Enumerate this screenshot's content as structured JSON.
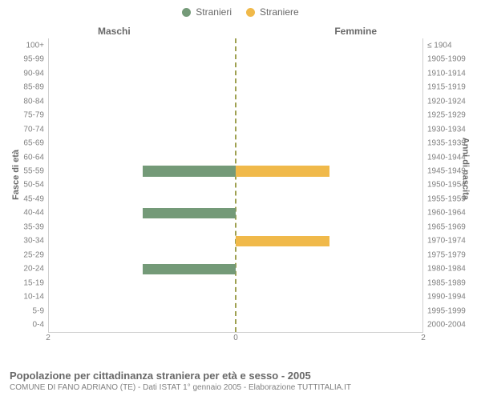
{
  "legend": {
    "items": [
      {
        "label": "Stranieri",
        "color": "#749a78"
      },
      {
        "label": "Straniere",
        "color": "#f0b94a"
      }
    ]
  },
  "headers": {
    "left": "Maschi",
    "right": "Femmine"
  },
  "axis_titles": {
    "left": "Fasce di età",
    "right": "Anni di nascita"
  },
  "chart": {
    "type": "bar",
    "xmax": 2,
    "xticks": [
      2,
      0,
      2
    ],
    "bar_left_color": "#749a78",
    "bar_right_color": "#f0b94a",
    "centerline_color": "#9ea050",
    "border_color": "#d0d0d0",
    "label_color": "#808080",
    "background_color": "#ffffff",
    "label_fontsize": 10,
    "header_fontsize": 12,
    "rows": [
      {
        "left_label": "100+",
        "right_label": "≤ 1904",
        "m": 0,
        "f": 0
      },
      {
        "left_label": "95-99",
        "right_label": "1905-1909",
        "m": 0,
        "f": 0
      },
      {
        "left_label": "90-94",
        "right_label": "1910-1914",
        "m": 0,
        "f": 0
      },
      {
        "left_label": "85-89",
        "right_label": "1915-1919",
        "m": 0,
        "f": 0
      },
      {
        "left_label": "80-84",
        "right_label": "1920-1924",
        "m": 0,
        "f": 0
      },
      {
        "left_label": "75-79",
        "right_label": "1925-1929",
        "m": 0,
        "f": 0
      },
      {
        "left_label": "70-74",
        "right_label": "1930-1934",
        "m": 0,
        "f": 0
      },
      {
        "left_label": "65-69",
        "right_label": "1935-1939",
        "m": 0,
        "f": 0
      },
      {
        "left_label": "60-64",
        "right_label": "1940-1944",
        "m": 0,
        "f": 0
      },
      {
        "left_label": "55-59",
        "right_label": "1945-1949",
        "m": 1,
        "f": 1
      },
      {
        "left_label": "50-54",
        "right_label": "1950-1954",
        "m": 0,
        "f": 0
      },
      {
        "left_label": "45-49",
        "right_label": "1955-1959",
        "m": 0,
        "f": 0
      },
      {
        "left_label": "40-44",
        "right_label": "1960-1964",
        "m": 1,
        "f": 0
      },
      {
        "left_label": "35-39",
        "right_label": "1965-1969",
        "m": 0,
        "f": 0
      },
      {
        "left_label": "30-34",
        "right_label": "1970-1974",
        "m": 0,
        "f": 1
      },
      {
        "left_label": "25-29",
        "right_label": "1975-1979",
        "m": 0,
        "f": 0
      },
      {
        "left_label": "20-24",
        "right_label": "1980-1984",
        "m": 1,
        "f": 0
      },
      {
        "left_label": "15-19",
        "right_label": "1985-1989",
        "m": 0,
        "f": 0
      },
      {
        "left_label": "10-14",
        "right_label": "1990-1994",
        "m": 0,
        "f": 0
      },
      {
        "left_label": "5-9",
        "right_label": "1995-1999",
        "m": 0,
        "f": 0
      },
      {
        "left_label": "0-4",
        "right_label": "2000-2004",
        "m": 0,
        "f": 0
      }
    ]
  },
  "caption": {
    "title": "Popolazione per cittadinanza straniera per età e sesso - 2005",
    "subtitle": "COMUNE DI FANO ADRIANO (TE) - Dati ISTAT 1° gennaio 2005 - Elaborazione TUTTITALIA.IT"
  }
}
